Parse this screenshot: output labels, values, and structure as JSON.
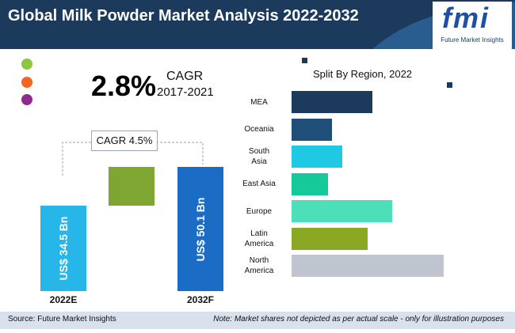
{
  "header": {
    "title": "Global Milk Powder Market Analysis 2022-2032"
  },
  "logo": {
    "letters": "fmi",
    "subtitle": "Future Market Insights"
  },
  "colors": {
    "header_bg": "#1b3a5c",
    "dot_green": "#8dc63f",
    "dot_orange": "#f26522",
    "dot_purple": "#8e2a8f"
  },
  "cagr_headline": {
    "value": "2.8%",
    "label": "CAGR",
    "period": "2017-2021"
  },
  "cagr_box": {
    "text": "CAGR 4.5%"
  },
  "chart_data": [
    {
      "type": "bar",
      "categories": [
        "2022E",
        "2032F"
      ],
      "values": [
        34.5,
        50.1
      ],
      "data_labels": [
        "US$ 34.5 Bn",
        "US$ 50.1 Bn"
      ],
      "colors": [
        "#26b6e8",
        "#1a6cc4"
      ],
      "increment_color": "#7fa532",
      "title": "",
      "xlabel": "",
      "ylabel": ""
    },
    {
      "type": "bar",
      "orientation": "horizontal",
      "title": "Split By Region, 2022",
      "categories": [
        "MEA",
        "Oceania",
        "South Asia",
        "East Asia",
        "Europe",
        "Latin America",
        "North America"
      ],
      "category_lines": [
        [
          "MEA"
        ],
        [
          "Oceania"
        ],
        [
          "South",
          "Asia"
        ],
        [
          "East Asia"
        ],
        [
          "Europe"
        ],
        [
          "Latin",
          "America"
        ],
        [
          "North",
          "America"
        ]
      ],
      "values": [
        10.3,
        5.1,
        6.4,
        4.6,
        12.8,
        9.6,
        19.3
      ],
      "colors": [
        "#1b3a5c",
        "#1f4e79",
        "#1fc8e3",
        "#16c99a",
        "#4de0b8",
        "#8aa823",
        "#bfc4cf"
      ]
    }
  ],
  "footer": {
    "source": "Source: Future Market Insights",
    "note": "Note: Market shares not depicted as per actual scale - only for illustration purposes"
  }
}
